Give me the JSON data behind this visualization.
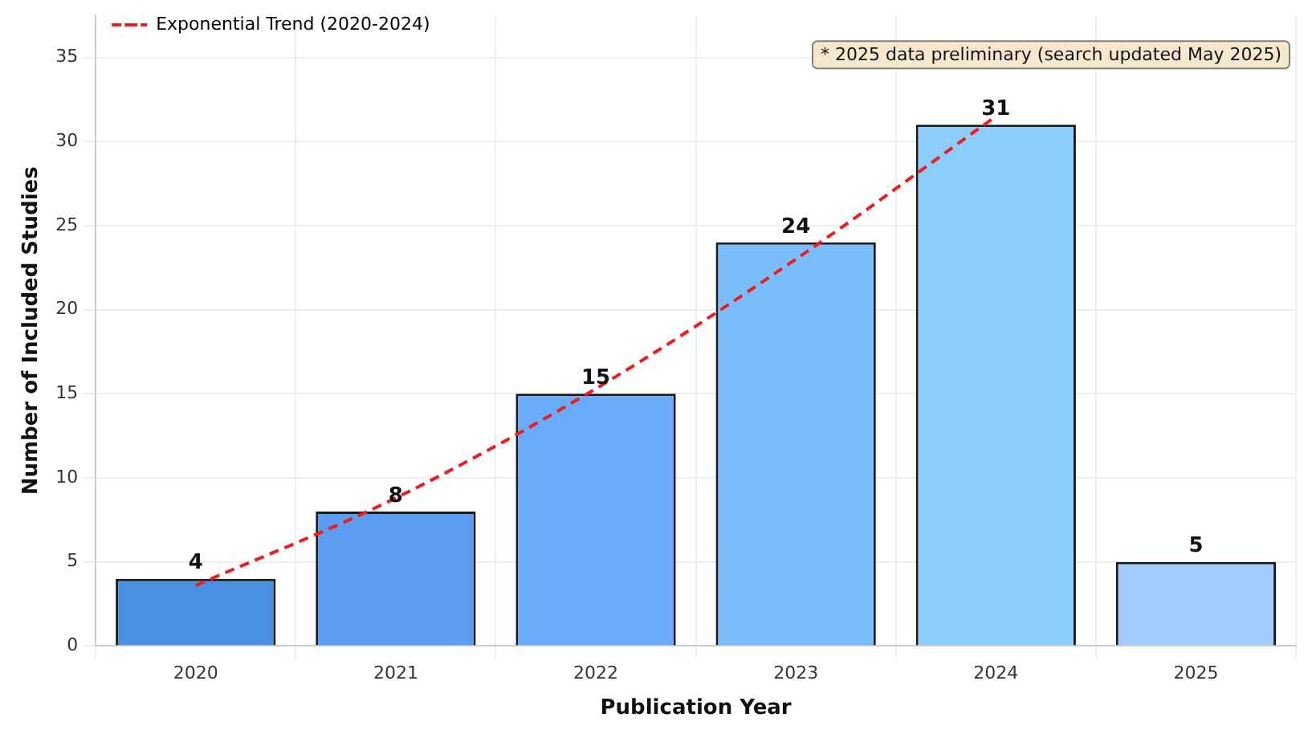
{
  "chart_data": {
    "type": "bar",
    "xlabel": "Publication Year",
    "ylabel": "Number of Included Studies",
    "categories": [
      "2020",
      "2021",
      "2022",
      "2023",
      "2024",
      "2025"
    ],
    "values": [
      4,
      8,
      15,
      24,
      31,
      5
    ],
    "colors": [
      "#4a8fe0",
      "#5b9ef1",
      "#69acfb",
      "#79bdfd",
      "#8dcdfe",
      "#a0cdfd"
    ],
    "series": [
      {
        "name": "Exponential Trend (2020-2024)",
        "type": "line",
        "color": "#ee1c1c",
        "line_style": "dashed",
        "marker": "none",
        "values": [
          3.6,
          8.8,
          15.3,
          23.0,
          31.5,
          null
        ]
      }
    ],
    "ylim": [
      0,
      37.5
    ],
    "yticks": [
      0,
      5,
      10,
      15,
      20,
      25,
      30,
      35
    ],
    "grid": true,
    "legend": "top left",
    "value_labels": [
      "4",
      "8",
      "15",
      "24",
      "31",
      "5"
    ],
    "annotations": [
      "* 2025 data preliminary (search updated May 2025)"
    ]
  }
}
